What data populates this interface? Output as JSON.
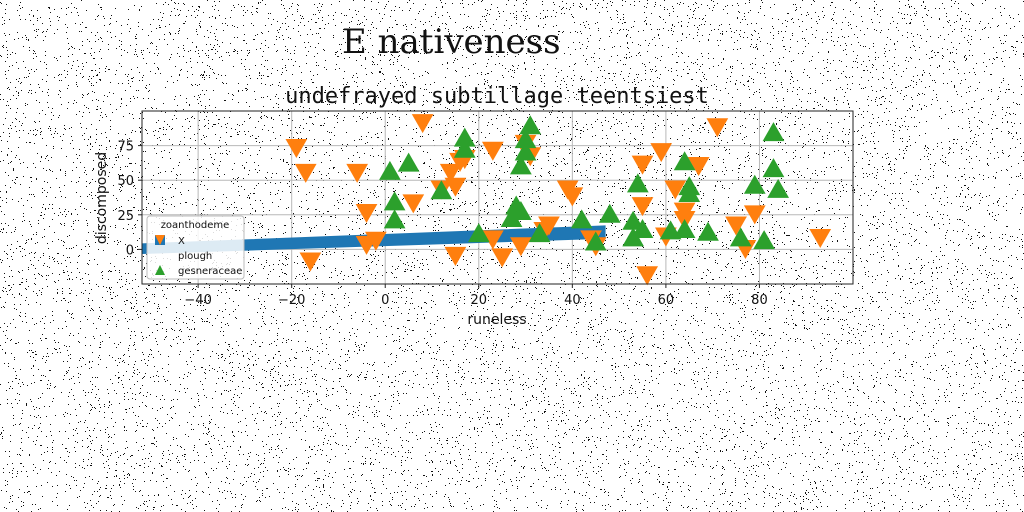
{
  "figure_title": "E nativeness",
  "chart_data": {
    "type": "scatter",
    "title": "undefrayed subtillage teentsiest",
    "xlabel": "runeless",
    "ylabel": "discomposed",
    "xlim": [
      -52,
      100
    ],
    "ylim": [
      -25,
      100
    ],
    "x_ticks": [
      -40,
      -20,
      0,
      20,
      40,
      60,
      80
    ],
    "y_ticks": [
      0,
      25,
      50,
      75
    ],
    "grid": true,
    "legend": {
      "title": "zoanthodeme",
      "placement": "lower-left"
    },
    "series": [
      {
        "name": "X",
        "marker": "square",
        "color": "#1f77b4",
        "band": {
          "x": [
            -52,
            47
          ],
          "y_bottom_start": -3,
          "y_bottom_end": 8,
          "y_top_start": 4,
          "y_top_end": 17
        }
      },
      {
        "name": "plough",
        "marker": "triangle-down",
        "color": "#ff7f0e",
        "points": [
          [
            -19,
            74
          ],
          [
            -17,
            56
          ],
          [
            -16,
            -8
          ],
          [
            -6,
            56
          ],
          [
            -4,
            27
          ],
          [
            -4,
            4
          ],
          [
            -2,
            7
          ],
          [
            6,
            34
          ],
          [
            8,
            92
          ],
          [
            12,
            44
          ],
          [
            14,
            56
          ],
          [
            15,
            46
          ],
          [
            15,
            -4
          ],
          [
            16,
            64
          ],
          [
            17,
            66
          ],
          [
            23,
            8
          ],
          [
            23,
            72
          ],
          [
            25,
            -5
          ],
          [
            29,
            3
          ],
          [
            30,
            77
          ],
          [
            31,
            68
          ],
          [
            34,
            14
          ],
          [
            35,
            18
          ],
          [
            39,
            44
          ],
          [
            40,
            39
          ],
          [
            44,
            8
          ],
          [
            45,
            3
          ],
          [
            55,
            62
          ],
          [
            55,
            32
          ],
          [
            56,
            -18
          ],
          [
            59,
            71
          ],
          [
            60,
            10
          ],
          [
            62,
            44
          ],
          [
            64,
            22
          ],
          [
            64,
            28
          ],
          [
            67,
            61
          ],
          [
            71,
            89
          ],
          [
            75,
            18
          ],
          [
            77,
            1
          ],
          [
            79,
            26
          ],
          [
            93,
            9
          ]
        ]
      },
      {
        "name": "gesneraceae",
        "marker": "triangle-up",
        "color": "#2ca02c",
        "points": [
          [
            1,
            56
          ],
          [
            2,
            34
          ],
          [
            2,
            21
          ],
          [
            5,
            62
          ],
          [
            12,
            42
          ],
          [
            17,
            80
          ],
          [
            17,
            72
          ],
          [
            20,
            11
          ],
          [
            27,
            22
          ],
          [
            28,
            31
          ],
          [
            29,
            27
          ],
          [
            29,
            60
          ],
          [
            30,
            79
          ],
          [
            30,
            70
          ],
          [
            31,
            89
          ],
          [
            33,
            11
          ],
          [
            42,
            21
          ],
          [
            45,
            5
          ],
          [
            48,
            25
          ],
          [
            53,
            8
          ],
          [
            53,
            20
          ],
          [
            54,
            47
          ],
          [
            55,
            14
          ],
          [
            61,
            13
          ],
          [
            64,
            14
          ],
          [
            64,
            63
          ],
          [
            65,
            45
          ],
          [
            65,
            40
          ],
          [
            69,
            12
          ],
          [
            76,
            8
          ],
          [
            79,
            46
          ],
          [
            81,
            6
          ],
          [
            83,
            84
          ],
          [
            83,
            58
          ],
          [
            84,
            43
          ]
        ]
      }
    ]
  }
}
